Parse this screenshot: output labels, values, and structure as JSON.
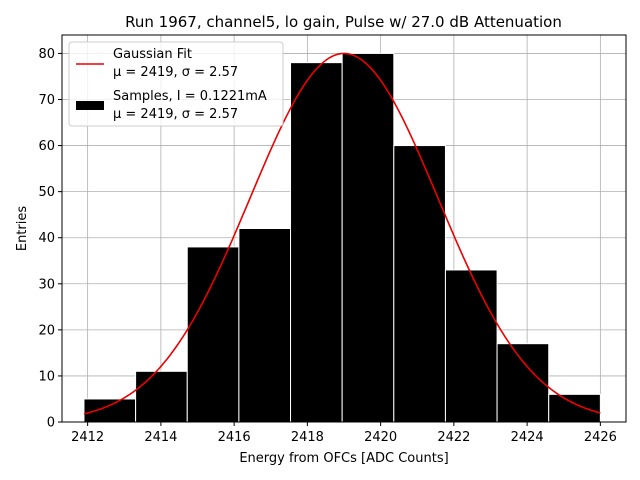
{
  "chart_data": {
    "type": "bar",
    "title": "Run 1967, channel5, lo gain, Pulse w/ 27.0 dB Attenuation",
    "xlabel": "Energy from OFCs [ADC Counts]",
    "ylabel": "Entries",
    "xlim": [
      2411.3,
      2426.7
    ],
    "ylim": [
      0,
      84
    ],
    "x_ticks": [
      2412,
      2414,
      2416,
      2418,
      2420,
      2422,
      2424,
      2426
    ],
    "y_ticks": [
      0,
      10,
      20,
      30,
      40,
      50,
      60,
      70,
      80
    ],
    "grid": true,
    "legend_position": "top-left",
    "histogram": {
      "bin_edges": [
        2411.9,
        2413.31,
        2414.72,
        2416.13,
        2417.54,
        2418.95,
        2420.36,
        2421.77,
        2423.18,
        2424.59,
        2426.0
      ],
      "counts": [
        5,
        11,
        38,
        42,
        78,
        80,
        60,
        33,
        17,
        6
      ],
      "color": "#000000",
      "edge_color": "#ffffff"
    },
    "gaussian_fit": {
      "mu": 2419.0,
      "sigma": 2.57,
      "amplitude": 80,
      "x_range": [
        2411.9,
        2426.0
      ],
      "color": "#ee0000"
    },
    "legend": [
      {
        "kind": "line",
        "color": "#ee0000",
        "line1": "Gaussian Fit",
        "line2": "μ = 2419, σ = 2.57"
      },
      {
        "kind": "patch",
        "color": "#000000",
        "line1": "Samples, I = 0.1221mA",
        "line2": "μ = 2419, σ = 2.57"
      }
    ]
  }
}
